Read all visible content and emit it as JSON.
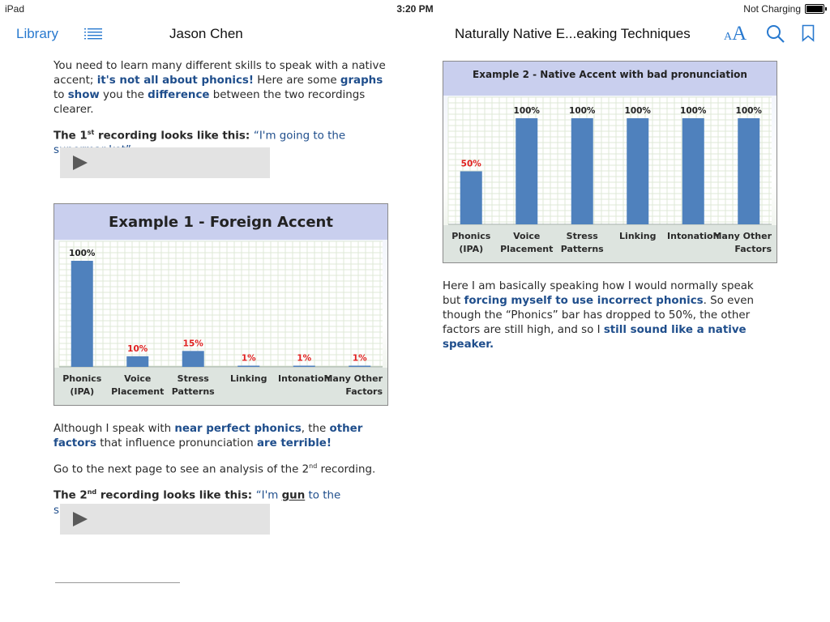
{
  "status_bar": {
    "device": "iPad",
    "time": "3:20 PM",
    "battery_text": "Not Charging"
  },
  "toolbar": {
    "library": "Library",
    "author": "Jason Chen",
    "book_title": "Naturally Native E...eaking Techniques",
    "font_small_a": "A",
    "font_large_a": "A",
    "icons": [
      "list-icon",
      "search-icon",
      "bookmark-icon"
    ],
    "accent_color": "#2879cf"
  },
  "left_page": {
    "intro": {
      "t1": "You need to learn many different skills to speak with a native accent; ",
      "t2": "it's not all about phonics!",
      "t3": " Here are some ",
      "t4": "graphs",
      "t5": " to ",
      "t6": "show",
      "t7": " you the ",
      "t8": "difference",
      "t9": " between the two recordings clearer."
    },
    "rec1": {
      "prefix": "The 1",
      "sup": "st",
      "suffix": " recording looks like this: ",
      "quote": "“I'm going to the supermar-ket”"
    },
    "p_after": {
      "t1": "Although I speak with ",
      "t2": "near perfect phonics",
      "t3": ", the ",
      "t4": "other factors",
      "t5": " that influence pronunciation ",
      "t6": "are terrible!"
    },
    "next": {
      "t1": "Go to the next page to see an analysis of the 2",
      "sup": "nd",
      "t2": " recording."
    },
    "rec2": {
      "prefix": "The 2",
      "sup": "nd",
      "suffix": " recording looks like this: ",
      "q1": "“I'm ",
      "q2": "gun",
      "q3": " to the supermarket”"
    }
  },
  "right_page": {
    "p1": {
      "t1": "Here I am basically speaking how I would normally speak but ",
      "t2": "forcing myself to use incorrect phonics",
      "t3": ". So even though the “Phonics” bar has dropped to 50%, the other factors are still high, and so I ",
      "t4": "still sound like a native speaker."
    }
  },
  "chart_data": [
    {
      "type": "bar",
      "title": "Example 1 - Foreign Accent",
      "categories": [
        [
          "Phonics",
          "(IPA)"
        ],
        [
          "Voice",
          "Placement"
        ],
        [
          "Stress",
          "Patterns"
        ],
        [
          "Linking"
        ],
        [
          "Intonation"
        ],
        [
          "Many Other",
          "Factors"
        ]
      ],
      "values": [
        100,
        10,
        15,
        1,
        1,
        1
      ],
      "labels": [
        "100%",
        "10%",
        "15%",
        "1%",
        "1%",
        "1%"
      ],
      "label_colors": [
        "#222222",
        "#e02020",
        "#e02020",
        "#e02020",
        "#e02020",
        "#e02020"
      ],
      "ylim": [
        0,
        100
      ],
      "grid": true,
      "bar_color": "#4f81bd"
    },
    {
      "type": "bar",
      "title": "Example 2 - Native Accent with bad pronunciation",
      "categories": [
        [
          "Phonics",
          "(IPA)"
        ],
        [
          "Voice",
          "Placement"
        ],
        [
          "Stress",
          "Patterns"
        ],
        [
          "Linking"
        ],
        [
          "Intonation"
        ],
        [
          "Many Other",
          "Factors"
        ]
      ],
      "values": [
        50,
        100,
        100,
        100,
        100,
        100
      ],
      "labels": [
        "50%",
        "100%",
        "100%",
        "100%",
        "100%",
        "100%"
      ],
      "label_colors": [
        "#e02020",
        "#222222",
        "#222222",
        "#222222",
        "#222222",
        "#222222"
      ],
      "ylim": [
        0,
        100
      ],
      "grid": true,
      "bar_color": "#4f81bd"
    }
  ]
}
